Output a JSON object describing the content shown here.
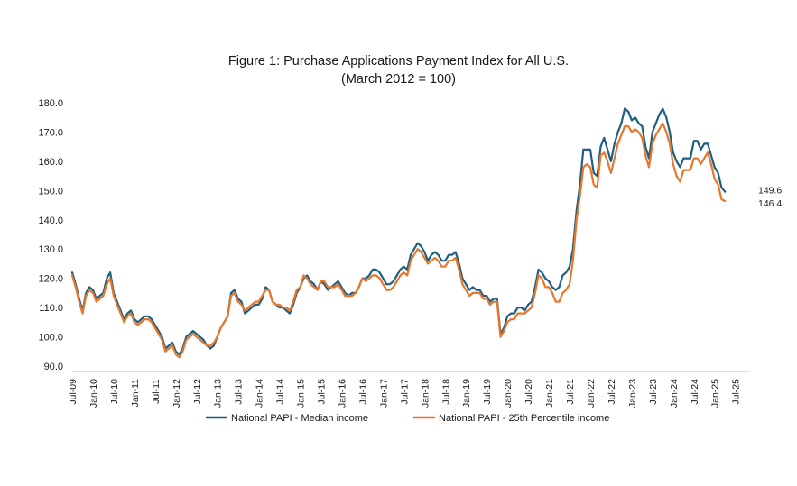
{
  "chart_data": {
    "type": "line",
    "title": "Figure 1: Purchase Applications Payment Index for All U.S.",
    "subtitle": "(March 2012 = 100)",
    "xlabel": "",
    "ylabel": "",
    "ylim": [
      90,
      180
    ],
    "y_ticks": [
      "90.0",
      "100.0",
      "110.0",
      "120.0",
      "130.0",
      "140.0",
      "150.0",
      "160.0",
      "170.0",
      "180.0"
    ],
    "x_ticks": [
      "Jul-09",
      "Jan-10",
      "Jul-10",
      "Jan-11",
      "Jul-11",
      "Jan-12",
      "Jul-12",
      "Jan-13",
      "Jul-13",
      "Jan-14",
      "Jul-14",
      "Jan-15",
      "Jul-15",
      "Jan-16",
      "Jul-16",
      "Jan-17",
      "Jul-17",
      "Jan-18",
      "Jul-18",
      "Jan-19",
      "Jul-19",
      "Jan-20",
      "Jul-20",
      "Jan-21",
      "Jul-21",
      "Jan-22",
      "Jul-22",
      "Jan-23",
      "Jul-23",
      "Jan-24",
      "Jul-24",
      "Jan-25",
      "Jul-25"
    ],
    "x_start": "Jul-09",
    "x_interval": "monthly",
    "grid": false,
    "legend_position": "bottom",
    "series": [
      {
        "name": "National PAPI - Median income",
        "color": "#1f5f7f",
        "end_label": "149.6",
        "values": [
          122,
          118,
          113,
          109,
          115,
          117,
          116,
          113,
          114,
          115,
          120,
          122,
          115,
          112,
          109,
          106,
          108,
          109,
          106,
          105,
          106,
          107,
          107,
          106,
          104,
          102,
          100,
          96,
          97,
          98,
          95,
          94,
          96,
          100,
          101,
          102,
          101,
          100,
          99,
          97,
          96,
          97,
          100,
          103,
          105,
          107,
          115,
          116,
          113,
          112,
          108,
          109,
          110,
          111,
          111,
          113,
          117,
          116,
          112,
          111,
          110,
          110,
          109,
          108,
          111,
          115,
          117,
          120,
          121,
          119,
          118,
          116,
          119,
          118,
          116,
          117,
          118,
          119,
          117,
          115,
          114,
          115,
          115,
          117,
          120,
          120,
          121,
          123,
          123,
          122,
          120,
          118,
          118,
          119,
          121,
          123,
          124,
          123,
          128,
          130,
          132,
          131,
          129,
          126,
          128,
          129,
          128,
          126,
          126,
          128,
          128,
          129,
          125,
          120,
          118,
          116,
          117,
          116,
          116,
          114,
          114,
          112,
          113,
          113,
          101,
          103,
          107,
          108,
          108,
          110,
          110,
          109,
          111,
          112,
          117,
          123,
          122,
          120,
          119,
          117,
          116,
          117,
          121,
          122,
          124,
          130,
          143,
          152,
          164,
          164,
          164,
          156,
          155,
          165,
          168,
          164,
          160,
          166,
          170,
          173,
          178,
          177,
          174,
          175,
          173,
          172,
          165,
          161,
          170,
          173,
          176,
          178,
          175,
          170,
          163,
          160,
          158,
          161,
          161,
          161,
          167,
          167,
          164,
          166,
          166,
          162,
          158,
          156,
          151,
          149.6
        ]
      },
      {
        "name": "National PAPI - 25th Percentile income",
        "color": "#e8762b",
        "end_label": "146.4",
        "values": [
          121,
          117,
          112,
          108,
          114,
          116,
          115,
          112,
          113,
          114,
          118,
          120,
          114,
          111,
          108,
          105,
          107,
          108,
          105,
          104,
          105,
          106,
          106,
          105,
          103,
          101,
          99,
          95,
          96,
          97,
          94,
          93,
          95,
          99,
          100,
          101,
          100,
          99,
          98,
          97,
          97,
          98,
          100,
          103,
          105,
          107,
          114,
          115,
          112,
          111,
          109,
          110,
          111,
          112,
          112,
          114,
          116,
          116,
          112,
          111,
          111,
          110,
          110,
          109,
          112,
          116,
          117,
          121,
          120,
          118,
          117,
          116,
          119,
          119,
          117,
          117,
          117,
          118,
          116,
          114,
          114,
          114,
          115,
          117,
          120,
          119,
          120,
          121,
          121,
          120,
          118,
          116,
          116,
          117,
          119,
          121,
          122,
          121,
          126,
          128,
          130,
          129,
          127,
          125,
          126,
          127,
          126,
          124,
          124,
          126,
          126,
          127,
          123,
          118,
          116,
          114,
          115,
          115,
          115,
          113,
          113,
          111,
          112,
          112,
          100,
          102,
          105,
          106,
          106,
          108,
          108,
          108,
          109,
          110,
          115,
          121,
          120,
          117,
          117,
          115,
          112,
          112,
          115,
          116,
          118,
          126,
          140,
          148,
          158,
          159,
          158,
          152,
          151,
          162,
          163,
          160,
          156,
          161,
          166,
          169,
          172,
          172,
          170,
          171,
          170,
          168,
          162,
          158,
          166,
          169,
          171,
          173,
          170,
          166,
          159,
          155,
          153,
          157,
          157,
          157,
          161,
          161,
          159,
          161,
          163,
          159,
          154,
          152,
          147,
          146.4
        ]
      }
    ]
  }
}
